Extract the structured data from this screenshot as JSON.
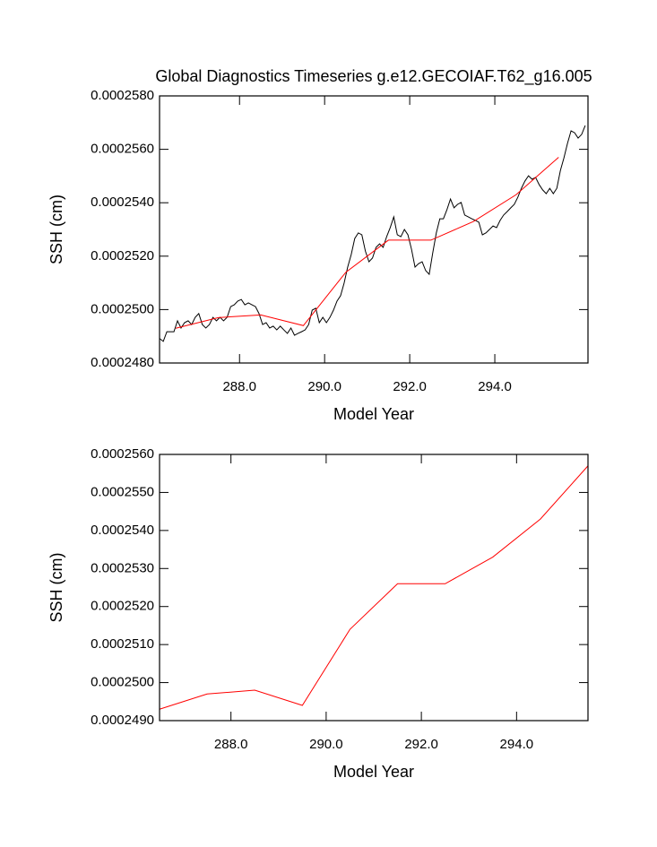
{
  "chart_data": [
    {
      "type": "line",
      "title": "Global Diagnostics Timeseries g.e12.GECOIAF.T62_g16.005",
      "xlabel": "Model Year",
      "ylabel": "SSH (cm)",
      "xlim": [
        286.12,
        296.19
      ],
      "ylim": [
        0.000248,
        0.000258
      ],
      "xticks": [
        {
          "value": 288,
          "label": "288.0"
        },
        {
          "value": 290,
          "label": "290.0"
        },
        {
          "value": 292,
          "label": "292.0"
        },
        {
          "value": 294,
          "label": "294.0"
        }
      ],
      "yticks": [
        {
          "value": 0.000248,
          "label": "0.0002480"
        },
        {
          "value": 0.00025,
          "label": "0.0002500"
        },
        {
          "value": 0.000252,
          "label": "0.0002520"
        },
        {
          "value": 0.000254,
          "label": "0.0002540"
        },
        {
          "value": 0.000256,
          "label": "0.0002560"
        },
        {
          "value": 0.000258,
          "label": "0.0002580"
        }
      ],
      "series": [
        {
          "color": "#000000",
          "x": [
            286.125,
            286.208,
            286.292,
            286.375,
            286.458,
            286.542,
            286.625,
            286.708,
            286.792,
            286.875,
            286.958,
            287.042,
            287.125,
            287.208,
            287.292,
            287.375,
            287.458,
            287.542,
            287.625,
            287.708,
            287.792,
            287.875,
            287.958,
            288.042,
            288.125,
            288.208,
            288.292,
            288.375,
            288.458,
            288.542,
            288.625,
            288.708,
            288.792,
            288.875,
            288.958,
            289.042,
            289.125,
            289.208,
            289.292,
            289.375,
            289.458,
            289.542,
            289.625,
            289.708,
            289.792,
            289.875,
            289.958,
            290.042,
            290.125,
            290.208,
            290.292,
            290.375,
            290.458,
            290.542,
            290.625,
            290.708,
            290.792,
            290.875,
            290.958,
            291.042,
            291.125,
            291.208,
            291.292,
            291.375,
            291.458,
            291.542,
            291.625,
            291.708,
            291.792,
            291.875,
            291.958,
            292.042,
            292.125,
            292.208,
            292.292,
            292.375,
            292.458,
            292.542,
            292.625,
            292.708,
            292.792,
            292.875,
            292.958,
            293.042,
            293.125,
            293.208,
            293.292,
            293.375,
            293.458,
            293.542,
            293.625,
            293.708,
            293.792,
            293.875,
            293.958,
            294.042,
            294.125,
            294.208,
            294.292,
            294.375,
            294.458,
            294.542,
            294.625,
            294.708,
            294.792,
            294.875,
            294.958,
            295.042,
            295.125,
            295.208,
            295.292,
            295.375,
            295.458,
            295.542,
            295.625,
            295.708,
            295.792,
            295.875,
            295.958,
            296.042,
            296.125
          ],
          "values": [
            0.00024891,
            0.00024881,
            0.00024917,
            0.00024917,
            0.00024917,
            0.00024958,
            0.00024931,
            0.00024951,
            0.00024958,
            0.00024944,
            0.00024971,
            0.00024985,
            0.00024944,
            0.00024931,
            0.00024944,
            0.00024971,
            0.00024958,
            0.00024971,
            0.00024958,
            0.00024971,
            0.00025011,
            0.00025018,
            0.00025032,
            0.00025038,
            0.00025018,
            0.00025025,
            0.00025018,
            0.00025011,
            0.00024985,
            0.00024944,
            0.00024951,
            0.00024931,
            0.00024938,
            0.00024924,
            0.00024938,
            0.00024924,
            0.00024911,
            0.00024931,
            0.00024904,
            0.00024911,
            0.00024917,
            0.00024924,
            0.00024944,
            0.00024998,
            0.00025005,
            0.00024951,
            0.00024971,
            0.00024951,
            0.00024971,
            0.00024998,
            0.00025032,
            0.00025052,
            0.00025099,
            0.00025159,
            0.00025206,
            0.00025266,
            0.00025287,
            0.0002528,
            0.00025219,
            0.00025179,
            0.00025193,
            0.00025233,
            0.00025246,
            0.00025233,
            0.00025273,
            0.00025307,
            0.00025347,
            0.0002528,
            0.00025273,
            0.000253,
            0.0002528,
            0.00025226,
            0.00025159,
            0.00025172,
            0.00025179,
            0.00025146,
            0.00025132,
            0.00025213,
            0.00025287,
            0.0002534,
            0.0002534,
            0.00025374,
            0.00025414,
            0.00025381,
            0.00025394,
            0.00025401,
            0.00025354,
            0.00025347,
            0.0002534,
            0.00025334,
            0.00025327,
            0.0002528,
            0.00025287,
            0.000253,
            0.00025313,
            0.00025307,
            0.00025334,
            0.00025354,
            0.00025367,
            0.00025381,
            0.00025394,
            0.00025421,
            0.00025454,
            0.00025481,
            0.00025501,
            0.00025488,
            0.00025495,
            0.00025468,
            0.00025448,
            0.00025434,
            0.00025454,
            0.00025434,
            0.00025454,
            0.00025521,
            0.00025568,
            0.00025622,
            0.00025669,
            0.00025662,
            0.00025642,
            0.00025656,
            0.00025689
          ]
        },
        {
          "color": "#ff0000",
          "x": [
            286.5,
            287.5,
            288.5,
            289.5,
            290.5,
            291.5,
            292.5,
            293.5,
            294.5,
            295.5
          ],
          "values": [
            0.0002493,
            0.0002497,
            0.0002498,
            0.0002494,
            0.0002514,
            0.0002526,
            0.0002526,
            0.0002533,
            0.0002543,
            0.0002557
          ]
        }
      ]
    },
    {
      "type": "line",
      "xlabel": "Model Year",
      "ylabel": "SSH (cm)",
      "xlim": [
        286.5,
        295.5
      ],
      "ylim": [
        0.000249,
        0.000256
      ],
      "xticks": [
        {
          "value": 288,
          "label": "288.0"
        },
        {
          "value": 290,
          "label": "290.0"
        },
        {
          "value": 292,
          "label": "292.0"
        },
        {
          "value": 294,
          "label": "294.0"
        }
      ],
      "yticks": [
        {
          "value": 0.000249,
          "label": "0.0002490"
        },
        {
          "value": 0.00025,
          "label": "0.0002500"
        },
        {
          "value": 0.000251,
          "label": "0.0002510"
        },
        {
          "value": 0.000252,
          "label": "0.0002520"
        },
        {
          "value": 0.000253,
          "label": "0.0002530"
        },
        {
          "value": 0.000254,
          "label": "0.0002540"
        },
        {
          "value": 0.000255,
          "label": "0.0002550"
        },
        {
          "value": 0.000256,
          "label": "0.0002560"
        }
      ],
      "series": [
        {
          "color": "#ff0000",
          "x": [
            286.5,
            287.5,
            288.5,
            289.5,
            290.5,
            291.5,
            292.5,
            293.5,
            294.5,
            295.5
          ],
          "values": [
            0.0002493,
            0.0002497,
            0.0002498,
            0.0002494,
            0.0002514,
            0.0002526,
            0.0002526,
            0.0002533,
            0.0002543,
            0.0002557
          ]
        }
      ]
    }
  ]
}
